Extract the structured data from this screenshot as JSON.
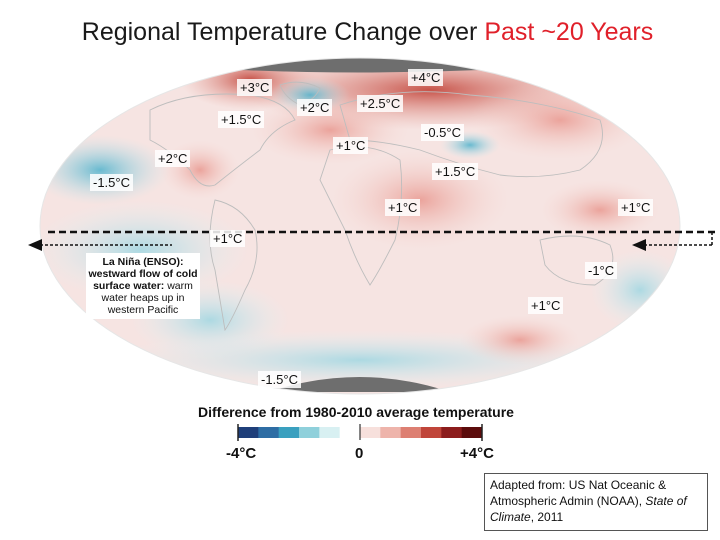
{
  "title": {
    "main": "Regional Temperature Change over ",
    "highlight": "Past ~20 Years"
  },
  "map_labels": [
    {
      "name": "label-n-america-north",
      "text": "+3°C"
    },
    {
      "name": "label-arctic-east",
      "text": "+4°C"
    },
    {
      "name": "label-n-atlantic",
      "text": "+2°C"
    },
    {
      "name": "label-europe",
      "text": "+2.5°C"
    },
    {
      "name": "label-n-america-mid",
      "text": "+1.5°C"
    },
    {
      "name": "label-russia",
      "text": "-0.5°C"
    },
    {
      "name": "label-mediterranean",
      "text": "+1°C"
    },
    {
      "name": "label-us-south",
      "text": "+2°C"
    },
    {
      "name": "label-china",
      "text": "+1.5°C"
    },
    {
      "name": "label-ne-pacific",
      "text": "-1.5°C"
    },
    {
      "name": "label-africa",
      "text": "+1°C"
    },
    {
      "name": "label-w-pacific",
      "text": "+1°C"
    },
    {
      "name": "label-e-pacific-eq",
      "text": "+1°C"
    },
    {
      "name": "label-australia-east",
      "text": "-1°C"
    },
    {
      "name": "label-australia-south",
      "text": "+1°C"
    },
    {
      "name": "label-southern-ocean",
      "text": "-1.5°C"
    }
  ],
  "enso_note": {
    "bold": "La Niña (ENSO): westward flow of cold surface water:",
    "text": " warm water heaps up in western Pacific"
  },
  "colorbar": {
    "title": "Difference from 1980-2010 average temperature",
    "min_label": "-4°C",
    "mid_label": "0",
    "max_label": "+4°C",
    "colors": [
      "#1f3f7a",
      "#2e6da4",
      "#3aa0bf",
      "#8fd0db",
      "#d8f0f2",
      "#ffffff",
      "#f7e0dc",
      "#eeb4ab",
      "#dd7f72",
      "#c0453a",
      "#8c1d1d",
      "#5c0c0c"
    ],
    "missing_color": "#6e6e6e"
  },
  "credit": {
    "line1": "Adapted from: US Nat Oceanic & Atmospheric Admin (NOAA), ",
    "italic": "State of Climate",
    "line2": ", 2011"
  },
  "colors": {
    "highlight": "#e0202a",
    "arrow": "#111111"
  }
}
